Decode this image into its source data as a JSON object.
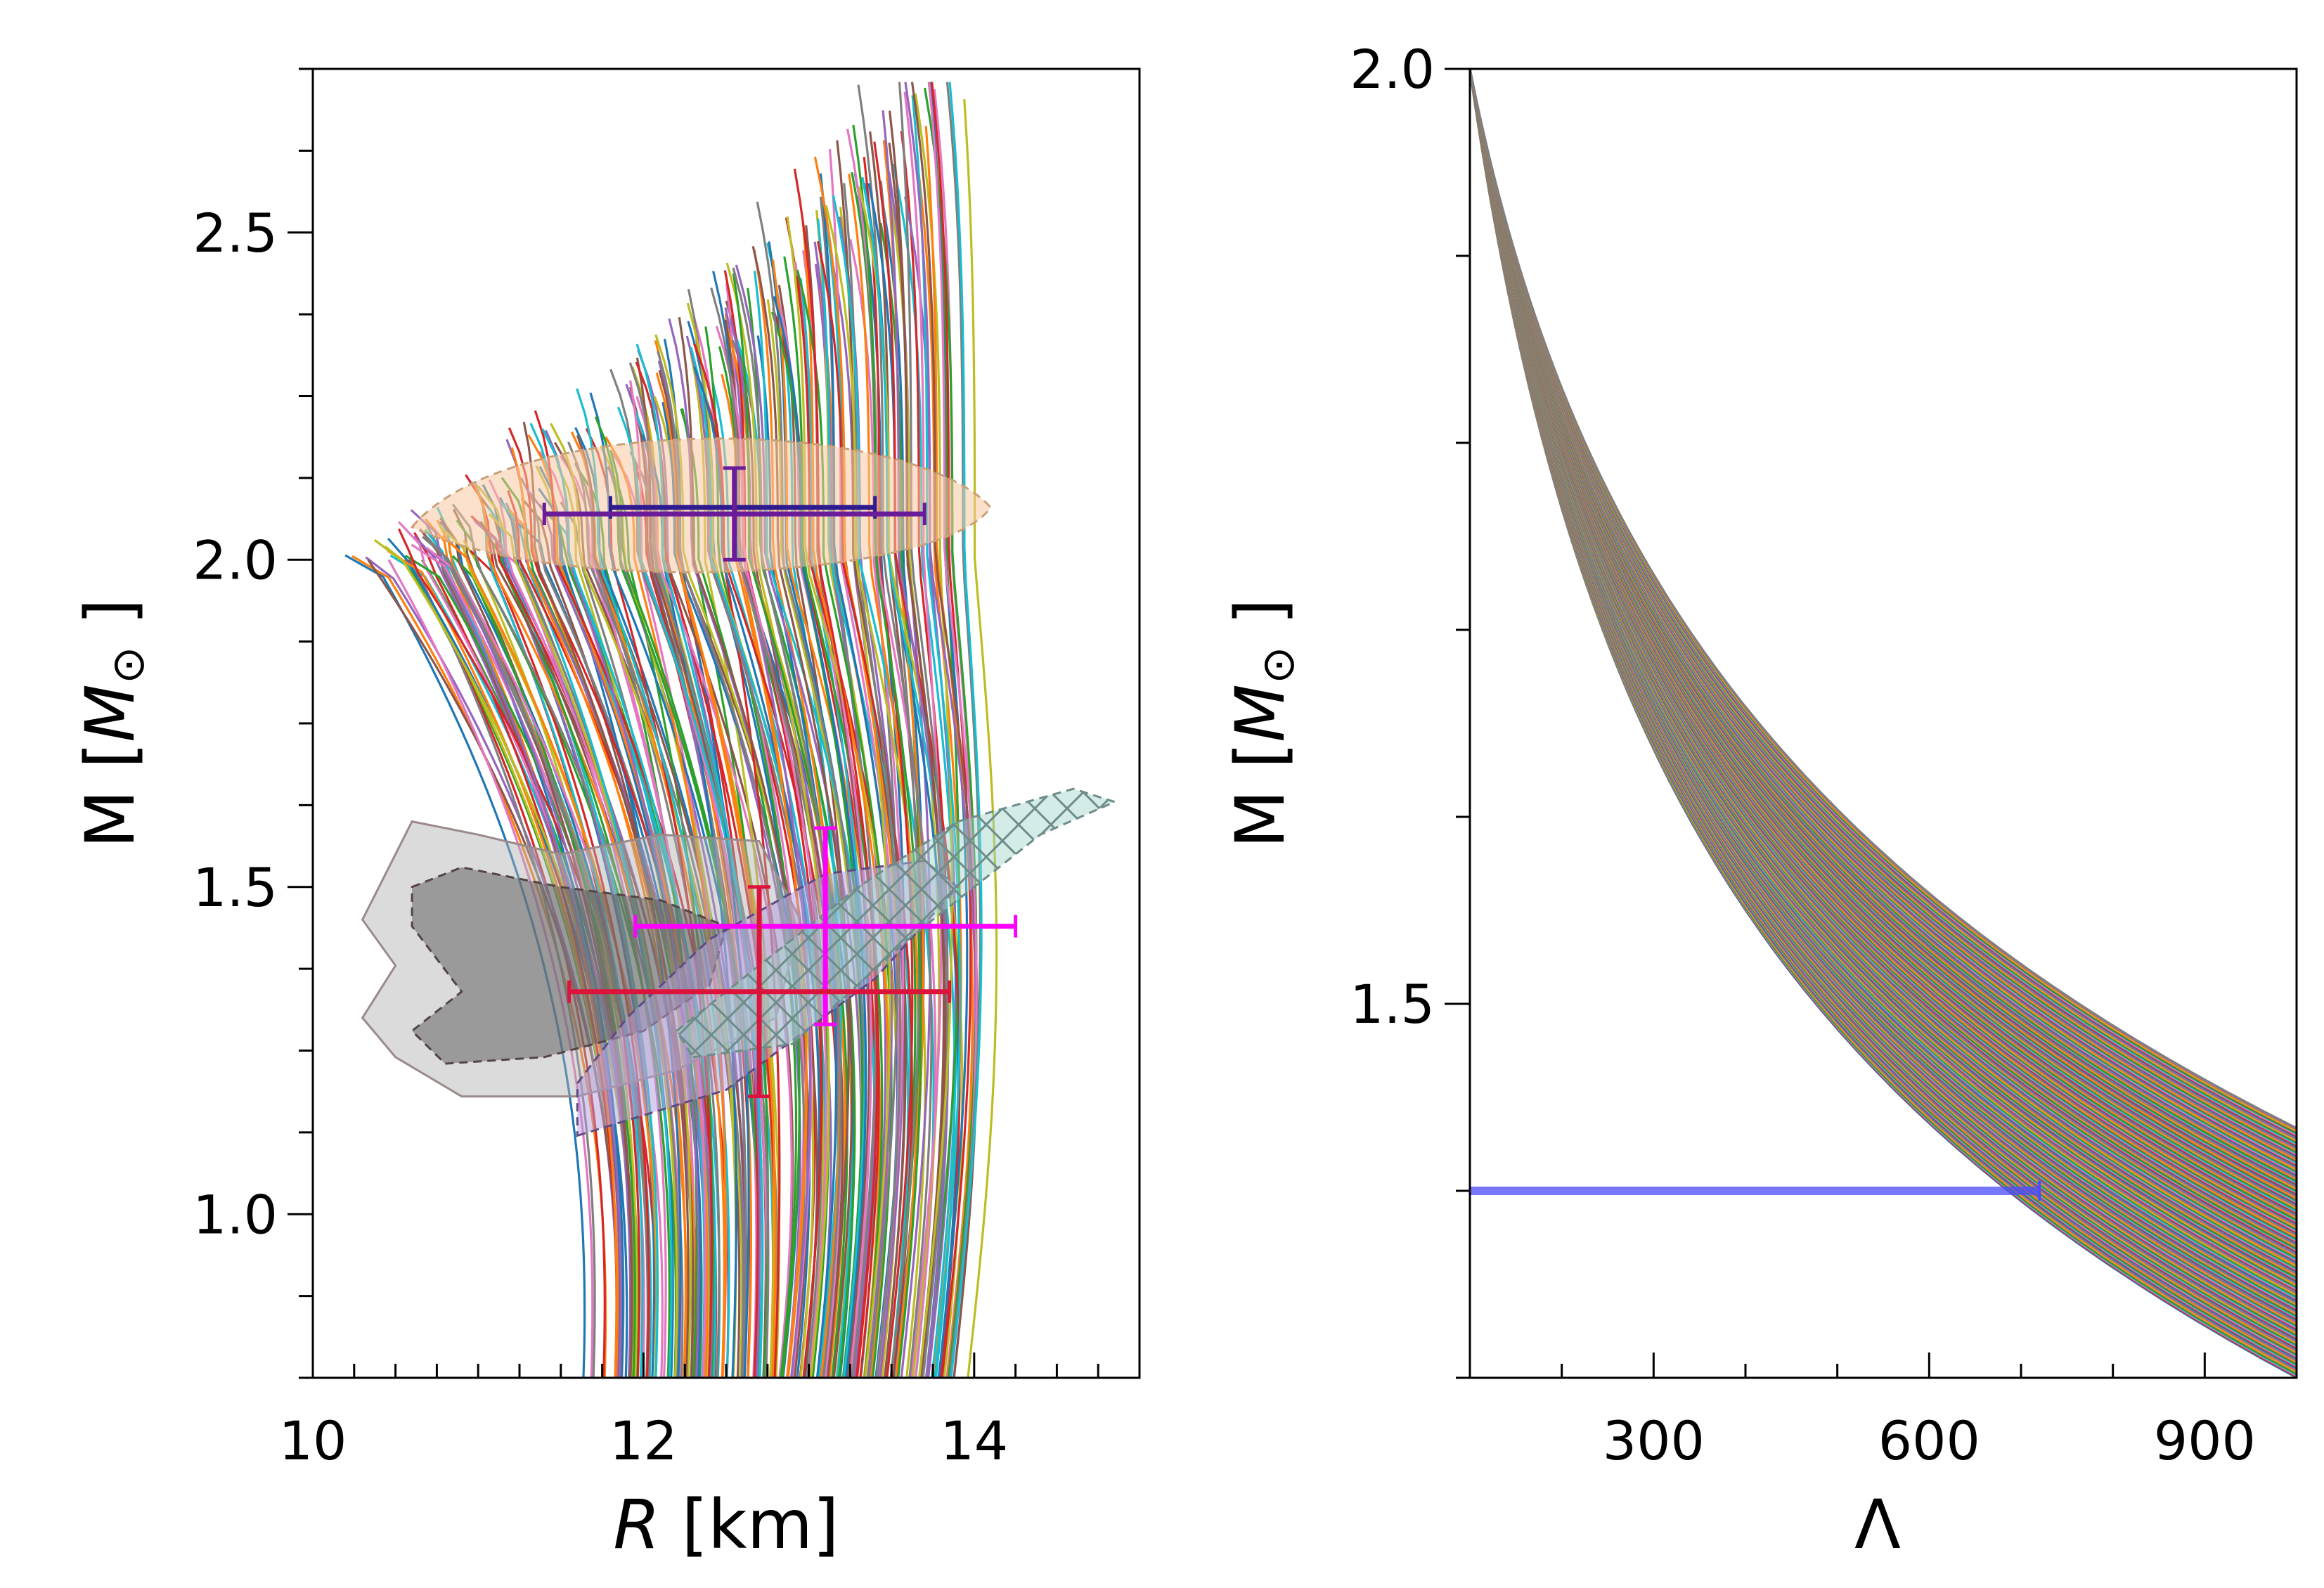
{
  "chart_data": [
    {
      "type": "line",
      "panel": "left",
      "title": "",
      "xlabel_var": "R",
      "xlabel_unit": " [km]",
      "ylabel_prefix": "M [",
      "ylabel_var": "M",
      "ylabel_sub": "⊙",
      "ylabel_suffix": " ]",
      "xlim": [
        10,
        15
      ],
      "ylim": [
        0.75,
        2.75
      ],
      "x_ticks": [
        10,
        12,
        14
      ],
      "x_tick_labels": [
        "10",
        "12",
        "14"
      ],
      "y_ticks": [
        1.0,
        1.5,
        2.0,
        2.5
      ],
      "y_tick_labels": [
        "1.0",
        "1.5",
        "2.0",
        "2.5"
      ],
      "grid": false,
      "description_of_series": "Ensemble of several hundred mass–radius curves, one per equation of state",
      "ensemble": {
        "n_curves": 260,
        "r_low_mass_range": [
          11.75,
          13.85
        ],
        "r_at_2msun_range": [
          10.35,
          13.9
        ],
        "m_max_range": [
          2.0,
          2.73
        ]
      },
      "measurements": [
        {
          "name": "high-mass pulsar (dark blue)",
          "color": "#2d1b8f",
          "x": 12.6,
          "x_err": [
            0.8,
            0.8
          ],
          "y": 2.08,
          "y_err": [
            0.0,
            0.0
          ]
        },
        {
          "name": "high-mass pulsar (purple)",
          "color": "#6a1b9a",
          "x": 12.55,
          "x_err": [
            1.15,
            1.15
          ],
          "y": 2.07,
          "y_err": [
            0.07,
            0.07
          ]
        },
        {
          "name": "PSR J0030 (magenta)",
          "color": "#ff00ff",
          "x": 13.1,
          "x_err": [
            1.15,
            1.15
          ],
          "y": 1.44,
          "y_err": [
            0.15,
            0.15
          ]
        },
        {
          "name": "PSR J0030 (crimson)",
          "color": "#dc143c",
          "x": 12.7,
          "x_err": [
            1.15,
            1.15
          ],
          "y": 1.34,
          "y_err": [
            0.16,
            0.16
          ]
        }
      ],
      "regions": [
        {
          "name": "high-mass credible region",
          "color": "#f7c9a0"
        },
        {
          "name": "GW170817 outer region",
          "color": "#b0b0b0"
        },
        {
          "name": "GW170817 inner region",
          "color": "#6e6e6e"
        },
        {
          "name": "NICER region (purple)",
          "color": "#b39ddb"
        },
        {
          "name": "NICER region (teal, hatched)",
          "color": "#9fd4cc"
        }
      ]
    },
    {
      "type": "line",
      "panel": "right",
      "title": "",
      "xlabel": "Λ",
      "ylabel_prefix": "M [",
      "ylabel_var": "M",
      "ylabel_sub": "⊙",
      "ylabel_suffix": " ]",
      "xlim": [
        100,
        1000
      ],
      "ylim": [
        1.3,
        2.0
      ],
      "x_ticks": [
        300,
        600,
        900
      ],
      "x_tick_labels": [
        "300",
        "600",
        "900"
      ],
      "y_ticks": [
        1.5,
        2.0
      ],
      "y_tick_labels": [
        "1.5",
        "2.0"
      ],
      "grid": false,
      "description_of_series": "Ensemble of mass–tidal-deformability curves, one per equation of state",
      "ensemble": {
        "n_curves": 260,
        "m_at_lambda_1000_range": [
          1.3,
          1.434
        ]
      },
      "measurements": [
        {
          "name": "tidal deformability bound",
          "color": "#4b4bff",
          "x_min": 100,
          "x_max": 720,
          "y": 1.4
        }
      ]
    }
  ],
  "palette": [
    "#1f77b4",
    "#ff7f0e",
    "#2ca02c",
    "#d62728",
    "#9467bd",
    "#8c564b",
    "#e377c2",
    "#7f7f7f",
    "#bcbd22",
    "#17becf"
  ]
}
